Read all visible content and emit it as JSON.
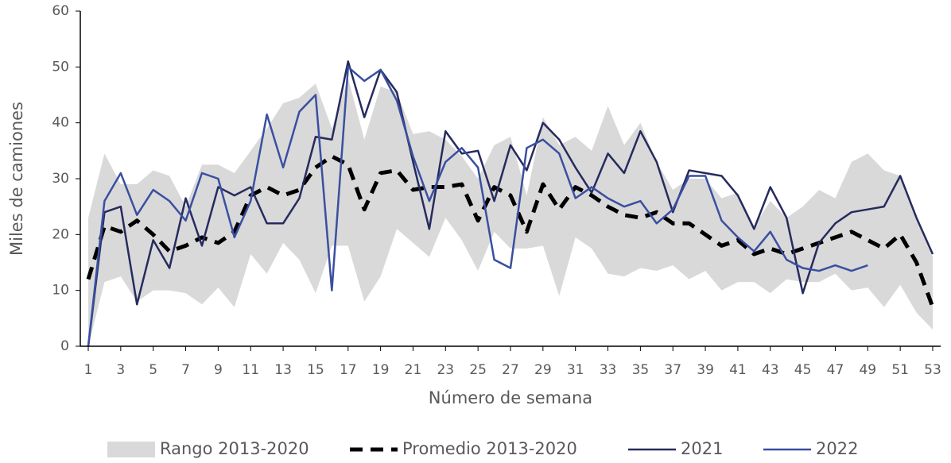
{
  "chart_data": {
    "type": "line",
    "y_label": "Miles de camiones",
    "x_label": "Número de semana",
    "x": [
      1,
      2,
      3,
      4,
      5,
      6,
      7,
      8,
      9,
      10,
      11,
      12,
      13,
      14,
      15,
      16,
      17,
      18,
      19,
      20,
      21,
      22,
      23,
      24,
      25,
      26,
      27,
      28,
      29,
      30,
      31,
      32,
      33,
      34,
      35,
      36,
      37,
      38,
      39,
      40,
      41,
      42,
      43,
      44,
      45,
      46,
      47,
      48,
      49,
      50,
      51,
      52,
      53
    ],
    "xlim": [
      1,
      53
    ],
    "xticks": [
      1,
      3,
      5,
      7,
      9,
      11,
      13,
      15,
      17,
      19,
      21,
      23,
      25,
      27,
      29,
      31,
      33,
      35,
      37,
      39,
      41,
      43,
      45,
      47,
      49,
      51,
      53
    ],
    "ylim": [
      0,
      60
    ],
    "yticks": [
      0,
      10,
      20,
      30,
      40,
      50,
      60
    ],
    "grid": false,
    "legend": "bottom",
    "series": [
      {
        "name": "Rango 2013-2020",
        "kind": "band",
        "color": "#d9d9d9",
        "lower": [
          0,
          11.5,
          12.5,
          8,
          10,
          10,
          9.5,
          7.5,
          10.5,
          7,
          16.5,
          13,
          18.5,
          15.5,
          9.5,
          18,
          18,
          8,
          12.5,
          21,
          18.5,
          16,
          23,
          19,
          13.5,
          20.5,
          17.5,
          17.5,
          18,
          9,
          19.5,
          17.5,
          13,
          12.5,
          14,
          13.5,
          14.5,
          12,
          13.5,
          10,
          11.5,
          11.5,
          9.5,
          12,
          11.5,
          11.5,
          13,
          10,
          10.5,
          7,
          11,
          6,
          3
        ],
        "upper": [
          23,
          34.5,
          29,
          29,
          31.5,
          30.5,
          25,
          32.5,
          32.5,
          31,
          35,
          39,
          43.5,
          44.5,
          47,
          39,
          48,
          37,
          46.5,
          45.5,
          38,
          38.5,
          37,
          34,
          30,
          36,
          37.5,
          27,
          41,
          36,
          37.5,
          35,
          43,
          36,
          40,
          33,
          28,
          30,
          30,
          26.5,
          27.5,
          21.5,
          26,
          23,
          25,
          28,
          26.5,
          33,
          34.5,
          31.5,
          30.5,
          23,
          16
        ]
      },
      {
        "name": "Promedio 2013-2020",
        "kind": "dashed",
        "color": "#000000",
        "values": [
          12,
          21.5,
          20.5,
          22.5,
          20,
          17,
          18,
          19.5,
          18.5,
          20.5,
          27,
          28.5,
          27,
          28,
          32,
          34,
          32.5,
          24.5,
          31,
          31.5,
          28,
          28.5,
          28.5,
          29,
          22.5,
          28.5,
          27,
          20.5,
          29,
          24.5,
          28.5,
          27,
          25,
          23.5,
          23,
          24,
          22,
          22,
          20,
          18,
          19,
          16.5,
          17.5,
          16.5,
          17.5,
          18.5,
          19.5,
          20.5,
          19,
          17.5,
          20,
          15,
          7
        ]
      },
      {
        "name": "2021",
        "kind": "solid",
        "color": "#262b5e",
        "values": [
          0,
          24,
          25,
          7.5,
          19,
          14,
          26.5,
          18,
          28.5,
          27,
          28.5,
          22,
          22,
          26.5,
          37.5,
          37,
          51,
          41,
          49.5,
          45.5,
          33,
          21,
          38.5,
          34.5,
          35,
          26,
          36,
          31.5,
          40,
          37,
          32,
          27.5,
          34.5,
          31,
          38.5,
          33,
          24,
          31.5,
          31,
          30.5,
          27,
          21,
          28.5,
          23,
          9.5,
          18.5,
          22,
          24,
          24.5,
          25,
          30.5,
          23,
          16.5
        ]
      },
      {
        "name": "2022",
        "kind": "solid",
        "color": "#3a4fa0",
        "values": [
          0,
          26,
          31,
          23.5,
          28,
          26,
          22.5,
          31,
          30,
          19.5,
          26,
          41.5,
          32,
          42,
          45,
          10,
          50,
          47.5,
          49.5,
          44,
          34,
          26,
          33,
          35.5,
          32,
          15.5,
          14,
          35.5,
          37,
          34.5,
          26.5,
          28.5,
          26.5,
          25,
          26,
          22,
          24.5,
          30.5,
          30.5,
          22.5,
          19.5,
          17,
          20.5,
          15.5,
          14,
          13.5,
          14.5,
          13.5,
          14.5,
          null,
          null,
          null,
          null
        ]
      }
    ]
  }
}
